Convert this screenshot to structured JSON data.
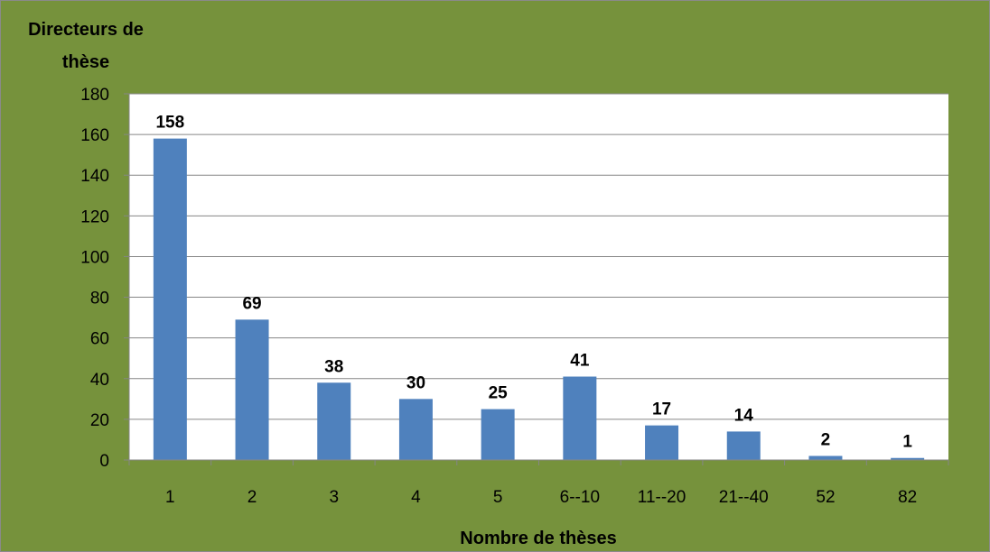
{
  "colors": {
    "background": "#76923c",
    "plot_area": "#ffffff",
    "bar": "#4f81bd",
    "gridline": "#868686",
    "text": "#000000"
  },
  "chart_data": {
    "type": "bar",
    "ylabel": "Directeurs de thèse",
    "xlabel": "Nombre de thèses",
    "categories": [
      "1",
      "2",
      "3",
      "4",
      "5",
      "6--10",
      "11--20",
      "21--40",
      "52",
      "82"
    ],
    "values": [
      158,
      69,
      38,
      30,
      25,
      41,
      17,
      14,
      2,
      1
    ],
    "data_labels": [
      "158",
      "69",
      "38",
      "30",
      "25",
      "41",
      "17",
      "14",
      "2",
      "1"
    ],
    "ylim": [
      0,
      180
    ],
    "yticks": [
      0,
      20,
      40,
      60,
      80,
      100,
      120,
      140,
      160,
      180
    ],
    "grid": true,
    "legend": "none"
  }
}
